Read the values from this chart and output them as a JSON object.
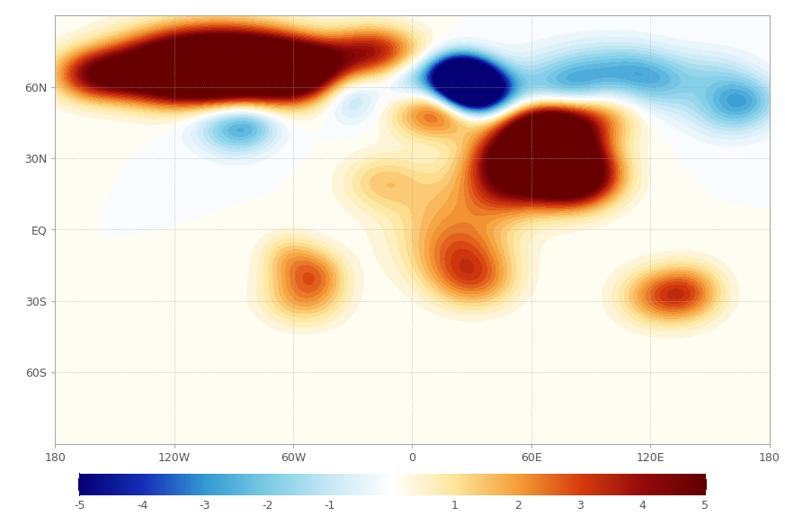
{
  "colorbar_label_levels": [
    -5,
    -4,
    -3,
    -2,
    -1,
    1,
    2,
    3,
    4,
    5
  ],
  "xlim": [
    -180,
    180
  ],
  "ylim": [
    -90,
    90
  ],
  "xticks": [
    -180,
    -120,
    -60,
    0,
    60,
    120,
    180
  ],
  "yticks": [
    -60,
    -30,
    0,
    30,
    60
  ],
  "xticklabels": [
    "180",
    "120W",
    "60W",
    "0",
    "60E",
    "120E",
    "180"
  ],
  "yticklabels": [
    "60S",
    "30S",
    "EQ",
    "30N",
    "60N"
  ],
  "background_color": "#ffffff",
  "figsize": [
    8.73,
    5.74
  ],
  "dpi": 100,
  "warm_blobs": [
    [
      -100,
      72,
      5.5,
      28,
      10
    ],
    [
      -130,
      66,
      4.2,
      22,
      8
    ],
    [
      -100,
      65,
      4.8,
      22,
      9
    ],
    [
      -70,
      70,
      3.8,
      18,
      8
    ],
    [
      -60,
      62,
      3.2,
      14,
      7
    ],
    [
      -50,
      70,
      3.0,
      14,
      6
    ],
    [
      -20,
      75,
      3.5,
      16,
      7
    ],
    [
      -160,
      65,
      3.0,
      14,
      7
    ],
    [
      60,
      30,
      3.5,
      18,
      10
    ],
    [
      75,
      25,
      4.8,
      16,
      10
    ],
    [
      85,
      22,
      3.2,
      14,
      8
    ],
    [
      50,
      28,
      2.8,
      14,
      8
    ],
    [
      70,
      38,
      3.8,
      14,
      9
    ],
    [
      65,
      42,
      3.2,
      14,
      8
    ],
    [
      90,
      48,
      2.8,
      16,
      8
    ],
    [
      20,
      5,
      1.5,
      22,
      15
    ],
    [
      25,
      -12,
      1.8,
      16,
      10
    ],
    [
      32,
      -22,
      1.6,
      14,
      8
    ],
    [
      -55,
      -28,
      1.8,
      14,
      8
    ],
    [
      -62,
      -12,
      1.3,
      10,
      7
    ],
    [
      -48,
      -18,
      1.5,
      10,
      7
    ],
    [
      125,
      -28,
      2.2,
      14,
      8
    ],
    [
      140,
      -26,
      1.8,
      12,
      8
    ],
    [
      20,
      52,
      1.8,
      18,
      8
    ],
    [
      10,
      48,
      1.5,
      14,
      7
    ],
    [
      -15,
      20,
      1.2,
      14,
      8
    ],
    [
      45,
      15,
      1.5,
      14,
      8
    ],
    [
      100,
      60,
      1.2,
      14,
      7
    ],
    [
      145,
      60,
      1.2,
      14,
      7
    ]
  ],
  "cold_blobs": [
    [
      25,
      62,
      -5.2,
      10,
      7
    ],
    [
      30,
      60,
      -4.8,
      10,
      7
    ],
    [
      20,
      65,
      -4.0,
      10,
      6
    ],
    [
      35,
      58,
      -3.5,
      10,
      7
    ],
    [
      90,
      62,
      -2.2,
      22,
      10
    ],
    [
      112,
      65,
      -1.8,
      16,
      8
    ],
    [
      132,
      60,
      -1.2,
      14,
      8
    ],
    [
      152,
      62,
      -1.8,
      14,
      8
    ],
    [
      -95,
      46,
      -1.3,
      14,
      8
    ],
    [
      -88,
      40,
      -1.1,
      12,
      7
    ],
    [
      -80,
      44,
      -1.0,
      10,
      6
    ],
    [
      45,
      58,
      -1.8,
      14,
      8
    ],
    [
      82,
      58,
      -1.5,
      14,
      8
    ],
    [
      -30,
      55,
      -1.2,
      10,
      7
    ],
    [
      0,
      62,
      -1.5,
      10,
      7
    ],
    [
      160,
      50,
      -1.5,
      14,
      8
    ],
    [
      170,
      55,
      -1.3,
      12,
      7
    ]
  ]
}
